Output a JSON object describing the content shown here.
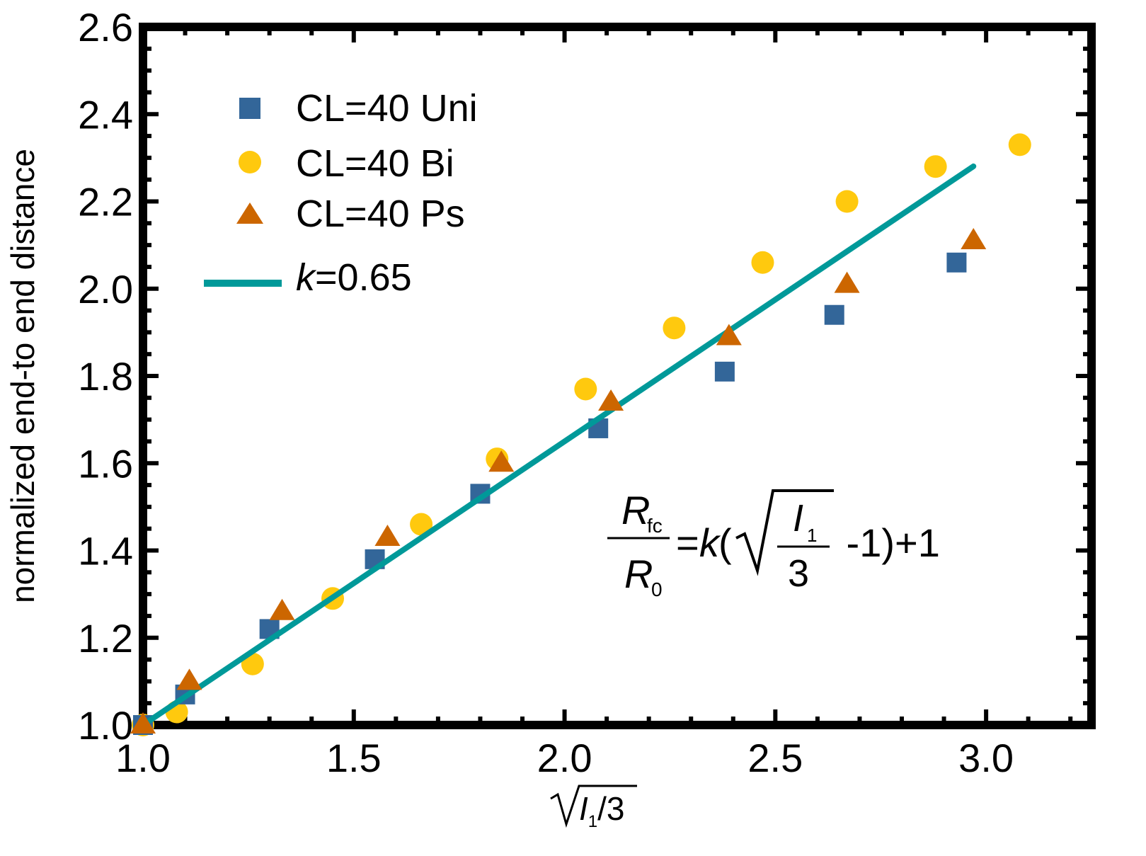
{
  "chart_data": {
    "type": "scatter",
    "xlabel": "√I₁/3",
    "ylabel": "normalized end-to end distance",
    "xlim": [
      1.0,
      3.25
    ],
    "ylim": [
      1.0,
      2.6
    ],
    "xticks": [
      "1.0",
      "1.5",
      "2.0",
      "2.5",
      "3.0"
    ],
    "yticks": [
      "1.0",
      "1.2",
      "1.4",
      "1.6",
      "1.8",
      "2.0",
      "2.2",
      "2.4",
      "2.6"
    ],
    "legend_position": "top-left",
    "series": [
      {
        "name": "CL=40 Uni",
        "marker": "square",
        "color": "#336699",
        "x": [
          1.0,
          1.1,
          1.3,
          1.55,
          1.8,
          2.08,
          2.38,
          2.64,
          2.93
        ],
        "y": [
          1.0,
          1.07,
          1.22,
          1.38,
          1.53,
          1.68,
          1.81,
          1.94,
          2.06
        ]
      },
      {
        "name": "CL=40 Bi",
        "marker": "circle",
        "color": "#FFC90E",
        "x": [
          1.0,
          1.08,
          1.26,
          1.45,
          1.66,
          1.84,
          2.05,
          2.26,
          2.47,
          2.67,
          2.88,
          3.08
        ],
        "y": [
          1.0,
          1.03,
          1.14,
          1.29,
          1.46,
          1.61,
          1.77,
          1.91,
          2.06,
          2.2,
          2.28,
          2.33
        ]
      },
      {
        "name": "CL=40 Ps",
        "marker": "triangle",
        "color": "#CC6600",
        "x": [
          1.0,
          1.11,
          1.33,
          1.58,
          1.85,
          2.11,
          2.39,
          2.67,
          2.97
        ],
        "y": [
          1.0,
          1.1,
          1.26,
          1.43,
          1.6,
          1.74,
          1.89,
          2.01,
          2.11
        ]
      },
      {
        "name": "k=0.65",
        "name_italic": "k",
        "name_rest": "=0.65",
        "type": "line",
        "color": "#009999",
        "x": [
          1.0,
          2.97
        ],
        "y": [
          1.0,
          2.2805
        ]
      }
    ],
    "annotation": {
      "num": "R",
      "num_sub": "fc",
      "den": "R",
      "den_sub": "0",
      "mid": "=",
      "k": "k",
      "open": "(",
      "rad_num": "I",
      "rad_num_sub": "1",
      "rad_den": "3",
      "tail": " -1)+1"
    }
  }
}
